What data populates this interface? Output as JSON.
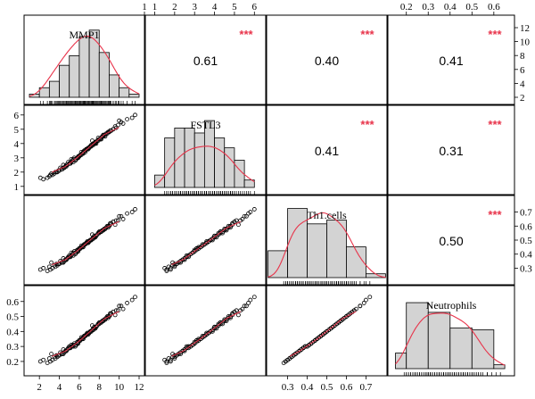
{
  "chart_data": {
    "type": "scatter-matrix",
    "colors": {
      "accent": "#e8334a",
      "bar_fill": "#d3d3d3",
      "points": "#000000"
    },
    "variables": [
      {
        "name": "MMP1",
        "range": [
          1,
          12
        ],
        "ticks": [
          2,
          4,
          6,
          8,
          10,
          12
        ],
        "tick_labels": [
          "2",
          "4",
          "6",
          "8",
          "10",
          "12"
        ],
        "extra_top_ticks": [
          1
        ]
      },
      {
        "name": "FSTL3",
        "range": [
          0.8,
          6.3
        ],
        "ticks": [
          1,
          2,
          3,
          4,
          5,
          6
        ],
        "tick_labels": [
          "1",
          "2",
          "3",
          "4",
          "5",
          "6"
        ]
      },
      {
        "name": "Th1.cells",
        "range": [
          0.22,
          0.78
        ],
        "ticks": [
          0.3,
          0.4,
          0.5,
          0.6,
          0.7
        ],
        "tick_labels": [
          "0.3",
          "0.4",
          "0.5",
          "0.6",
          "0.7"
        ]
      },
      {
        "name": "Neutrophils",
        "range": [
          0.14,
          0.67
        ],
        "ticks": [
          0.2,
          0.3,
          0.4,
          0.5,
          0.6
        ],
        "tick_labels": [
          "0.2",
          "0.3",
          "0.4",
          "0.5",
          "0.6"
        ]
      }
    ],
    "histograms": [
      {
        "breaks": [
          1,
          2,
          3,
          4,
          5,
          6,
          7,
          8,
          9,
          10,
          11,
          12
        ],
        "counts": [
          1,
          3,
          5,
          10,
          13,
          19,
          21,
          14,
          7,
          3,
          1
        ],
        "count_max": 24
      },
      {
        "breaks": [
          1,
          1.5,
          2,
          2.5,
          3,
          3.5,
          4,
          4.5,
          5,
          5.5,
          6
        ],
        "counts": [
          5,
          20,
          24,
          24,
          22,
          27,
          20,
          16,
          11,
          3
        ],
        "count_max": 31
      },
      {
        "breaks": [
          0.2,
          0.3,
          0.4,
          0.5,
          0.6,
          0.7,
          0.8
        ],
        "counts": [
          14,
          36,
          28,
          30,
          16,
          2
        ],
        "count_max": 40
      },
      {
        "breaks": [
          0.15,
          0.2,
          0.3,
          0.4,
          0.5,
          0.6,
          0.65
        ],
        "counts": [
          8,
          34,
          29,
          21,
          20,
          2
        ],
        "count_max": 40,
        "widths": [
          0.05,
          0.1,
          0.1,
          0.1,
          0.1,
          0.05
        ]
      }
    ],
    "correlations": [
      {
        "pair": [
          "MMP1",
          "FSTL3"
        ],
        "value": "0.61",
        "stars": "***"
      },
      {
        "pair": [
          "MMP1",
          "Th1.cells"
        ],
        "value": "0.40",
        "stars": "***"
      },
      {
        "pair": [
          "MMP1",
          "Neutrophils"
        ],
        "value": "0.41",
        "stars": "***"
      },
      {
        "pair": [
          "FSTL3",
          "Th1.cells"
        ],
        "value": "0.41",
        "stars": "***"
      },
      {
        "pair": [
          "FSTL3",
          "Neutrophils"
        ],
        "value": "0.31",
        "stars": "***"
      },
      {
        "pair": [
          "Th1.cells",
          "Neutrophils"
        ],
        "value": "0.50",
        "stars": "***"
      }
    ],
    "samples": {
      "MMP1": [
        6.2,
        7.6,
        5.1,
        8.4,
        3.2,
        9.6,
        6.9,
        4.7,
        7.3,
        2.4,
        8.9,
        5.8,
        6.5,
        10.4,
        4.1,
        7.9,
        6.0,
        3.7,
        8.2,
        5.4,
        7.1,
        9.1,
        4.4,
        6.7,
        11.3,
        5.6,
        8.6,
        3.0,
        7.4,
        6.3,
        4.9,
        9.4,
        6.8,
        2.1,
        7.7,
        5.2,
        8.0,
        6.1,
        10.0,
        4.3,
        7.2,
        5.9,
        8.8,
        3.5,
        6.6,
        7.5,
        9.9,
        4.6,
        6.4,
        8.3,
        5.0,
        7.0,
        3.9,
        9.2,
        6.2,
        7.8,
        5.5,
        8.5,
        4.2,
        6.9,
        10.8,
        5.7,
        7.3,
        3.3,
        8.1,
        6.0,
        4.8,
        9.0,
        7.6,
        5.3,
        6.6,
        8.7,
        2.8,
        7.1,
        5.9,
        9.7,
        4.5,
        6.4,
        8.0,
        5.1,
        7.4,
        3.6,
        8.9,
        6.3,
        10.2,
        4.0,
        7.0,
        5.6,
        8.4,
        6.8,
        3.1,
        7.7,
        5.4,
        9.4,
        6.1,
        4.7,
        8.2,
        7.2,
        5.0,
        6.5,
        11.6,
        4.4,
        7.9,
        5.8,
        8.6,
        3.8,
        6.7,
        9.1,
        5.2,
        7.5
      ],
      "FSTL3": [
        3.4,
        4.1,
        2.6,
        4.6,
        1.9,
        5.2,
        3.7,
        2.4,
        4.2,
        1.5,
        4.8,
        3.0,
        3.5,
        5.4,
        2.3,
        4.4,
        3.1,
        2.0,
        4.3,
        2.9,
        3.8,
        4.9,
        2.5,
        3.6,
        5.8,
        2.8,
        4.5,
        1.7,
        3.9,
        3.3,
        2.7,
        5.0,
        3.6,
        1.6,
        4.0,
        2.9,
        4.3,
        3.2,
        5.6,
        2.2,
        3.8,
        3.1,
        4.7,
        1.9,
        3.5,
        4.0,
        5.3,
        2.4,
        3.3,
        4.5,
        2.6,
        3.7,
        2.1,
        4.9,
        3.2,
        4.2,
        3.0,
        4.6,
        2.2,
        3.6,
        5.7,
        2.9,
        3.9,
        1.8,
        4.3,
        3.1,
        2.5,
        4.8,
        4.0,
        2.8,
        3.4,
        4.7,
        1.6,
        3.8,
        3.0,
        5.1,
        2.3,
        3.4,
        4.3,
        2.6,
        4.0,
        2.0,
        4.8,
        3.3,
        5.5,
        2.1,
        3.7,
        2.9,
        4.5,
        3.6,
        1.8,
        4.1,
        2.7,
        5.0,
        3.2,
        2.5,
        4.4,
        3.9,
        2.6,
        3.5,
        6.0,
        2.3,
        4.2,
        3.0,
        4.6,
        2.0,
        3.6,
        4.9,
        2.7,
        4.0
      ],
      "Th1.cells": [
        0.46,
        0.52,
        0.38,
        0.57,
        0.34,
        0.61,
        0.49,
        0.36,
        0.54,
        0.3,
        0.59,
        0.43,
        0.47,
        0.65,
        0.35,
        0.55,
        0.44,
        0.33,
        0.56,
        0.41,
        0.5,
        0.62,
        0.37,
        0.48,
        0.7,
        0.4,
        0.58,
        0.31,
        0.51,
        0.45,
        0.38,
        0.63,
        0.49,
        0.29,
        0.53,
        0.41,
        0.56,
        0.44,
        0.67,
        0.34,
        0.5,
        0.43,
        0.6,
        0.32,
        0.47,
        0.53,
        0.64,
        0.36,
        0.45,
        0.57,
        0.39,
        0.49,
        0.33,
        0.62,
        0.45,
        0.54,
        0.42,
        0.58,
        0.34,
        0.48,
        0.69,
        0.41,
        0.51,
        0.3,
        0.56,
        0.44,
        0.37,
        0.6,
        0.52,
        0.4,
        0.47,
        0.59,
        0.28,
        0.5,
        0.42,
        0.64,
        0.35,
        0.46,
        0.55,
        0.38,
        0.52,
        0.31,
        0.6,
        0.45,
        0.67,
        0.33,
        0.49,
        0.41,
        0.57,
        0.48,
        0.29,
        0.53,
        0.39,
        0.63,
        0.44,
        0.36,
        0.56,
        0.5,
        0.38,
        0.47,
        0.72,
        0.34,
        0.55,
        0.42,
        0.58,
        0.32,
        0.48,
        0.61,
        0.39,
        0.52
      ],
      "Neutrophils": [
        0.36,
        0.42,
        0.29,
        0.47,
        0.25,
        0.51,
        0.39,
        0.27,
        0.44,
        0.21,
        0.49,
        0.33,
        0.37,
        0.55,
        0.26,
        0.45,
        0.34,
        0.24,
        0.46,
        0.31,
        0.4,
        0.52,
        0.28,
        0.38,
        0.61,
        0.3,
        0.48,
        0.22,
        0.41,
        0.35,
        0.29,
        0.53,
        0.39,
        0.2,
        0.43,
        0.31,
        0.46,
        0.34,
        0.57,
        0.25,
        0.4,
        0.33,
        0.5,
        0.23,
        0.37,
        0.43,
        0.54,
        0.27,
        0.35,
        0.47,
        0.3,
        0.39,
        0.24,
        0.52,
        0.35,
        0.44,
        0.32,
        0.48,
        0.25,
        0.38,
        0.59,
        0.31,
        0.41,
        0.21,
        0.46,
        0.34,
        0.28,
        0.5,
        0.42,
        0.3,
        0.37,
        0.49,
        0.19,
        0.4,
        0.32,
        0.54,
        0.26,
        0.36,
        0.45,
        0.29,
        0.42,
        0.22,
        0.5,
        0.35,
        0.57,
        0.24,
        0.39,
        0.31,
        0.47,
        0.38,
        0.2,
        0.43,
        0.3,
        0.53,
        0.34,
        0.27,
        0.46,
        0.4,
        0.29,
        0.37,
        0.63,
        0.25,
        0.45,
        0.32,
        0.48,
        0.23,
        0.38,
        0.51,
        0.3,
        0.42
      ]
    }
  }
}
